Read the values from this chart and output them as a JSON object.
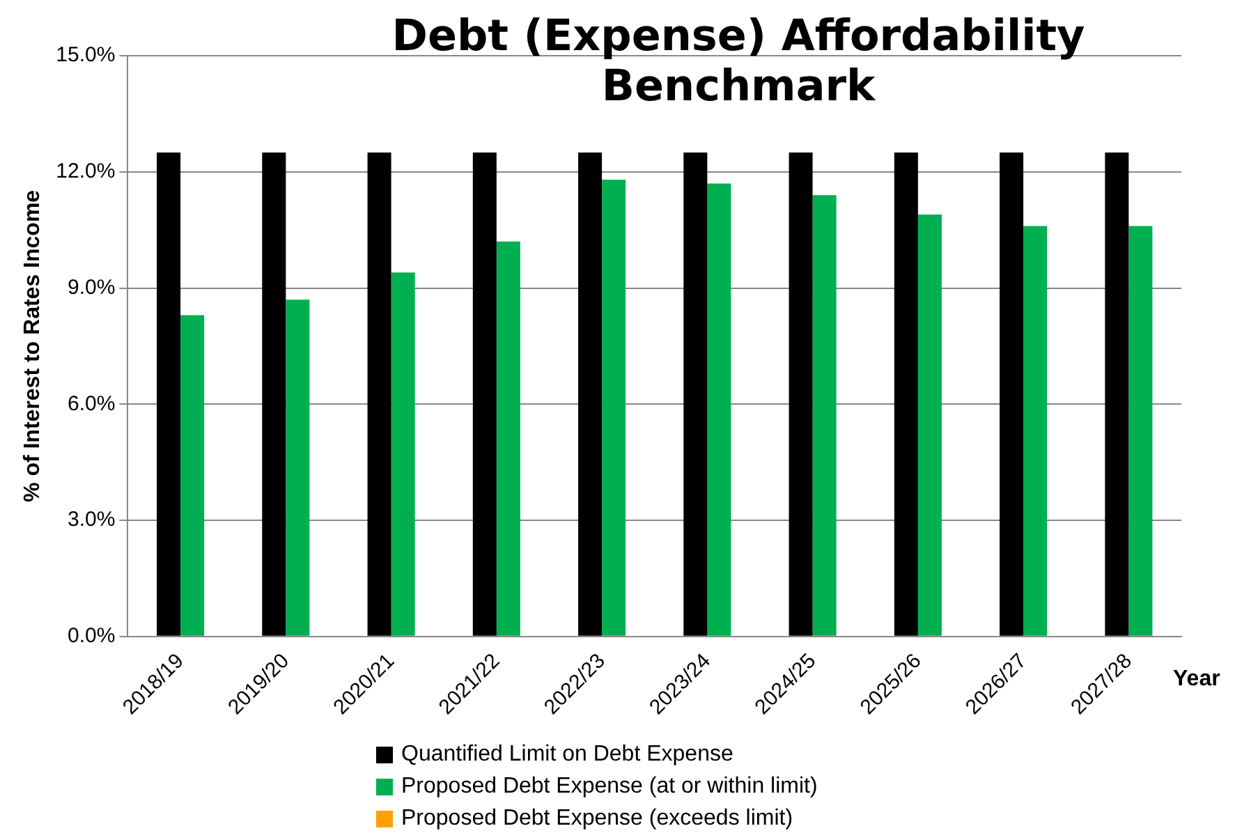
{
  "chart_data": {
    "type": "bar",
    "title": "Debt (Expense) Affordability Benchmark",
    "xlabel": "Year",
    "ylabel": "% of Interest to Rates Income",
    "categories": [
      "2018/19",
      "2019/20",
      "2020/21",
      "2021/22",
      "2022/23",
      "2023/24",
      "2024/25",
      "2025/26",
      "2026/27",
      "2027/28"
    ],
    "series": [
      {
        "name": "Quantified Limit on Debt Expense",
        "color": "#000000",
        "values": [
          12.5,
          12.5,
          12.5,
          12.5,
          12.5,
          12.5,
          12.5,
          12.5,
          12.5,
          12.5
        ]
      },
      {
        "name": "Proposed Debt Expense (at or within limit)",
        "color": "#00b050",
        "values": [
          8.3,
          8.7,
          9.4,
          10.2,
          11.8,
          11.7,
          11.4,
          10.9,
          10.6,
          10.6
        ]
      },
      {
        "name": "Proposed Debt Expense (exceeds limit)",
        "color": "#ffa000",
        "values": [
          null,
          null,
          null,
          null,
          null,
          null,
          null,
          null,
          null,
          null
        ]
      }
    ],
    "ylim": [
      0,
      15
    ],
    "yticks": [
      {
        "value": 0,
        "label": "0.0%"
      },
      {
        "value": 3,
        "label": "3.0%"
      },
      {
        "value": 6,
        "label": "6.0%"
      },
      {
        "value": 9,
        "label": "9.0%"
      },
      {
        "value": 12,
        "label": "12.0%"
      },
      {
        "value": 15,
        "label": "15.0%"
      }
    ],
    "grid": "y",
    "legend": "bottom"
  }
}
